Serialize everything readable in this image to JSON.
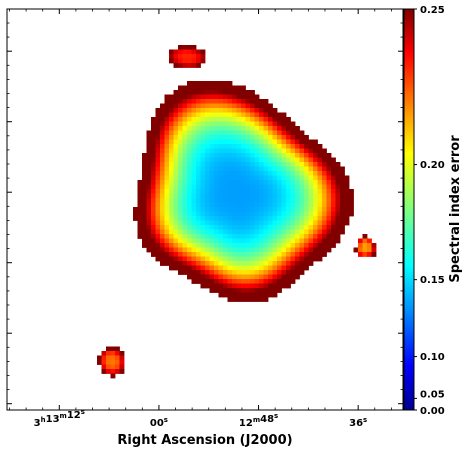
{
  "chart_data": {
    "type": "heatmap",
    "xlabel": "Right Ascension (J2000)",
    "x_ticks": [
      {
        "h": "3",
        "m": "13",
        "s": "12",
        "sec": 3192
      },
      {
        "h": "",
        "m": "",
        "s": "00",
        "sec": 3180
      },
      {
        "h": "",
        "m": "12",
        "s": "48",
        "sec": 3168
      },
      {
        "h": "",
        "m": "",
        "s": "36",
        "sec": 3156
      }
    ],
    "x_range_sec": [
      3198.3,
      3150.6
    ],
    "colorbar": {
      "label": "Spectral index error",
      "range": [
        0.0,
        0.25
      ],
      "ticks": [
        "0.25",
        "0.20",
        "0.15",
        "0.10",
        "0.05",
        "0.00"
      ],
      "tick_values": [
        0.25,
        0.2,
        0.15,
        0.1,
        0.05,
        0.0
      ],
      "colormap": "jet"
    },
    "sources": [
      {
        "name": "central-source",
        "cx": 0.58,
        "cy": 0.46,
        "min_value": 0.07,
        "max_value": 0.25
      },
      {
        "name": "north-source",
        "cx": 0.455,
        "cy": 0.12,
        "min_value": 0.21,
        "max_value": 0.25
      },
      {
        "name": "east-source",
        "cx": 0.905,
        "cy": 0.595,
        "min_value": 0.18,
        "max_value": 0.25
      },
      {
        "name": "southwest-source",
        "cx": 0.265,
        "cy": 0.88,
        "min_value": 0.19,
        "max_value": 0.25
      }
    ]
  }
}
